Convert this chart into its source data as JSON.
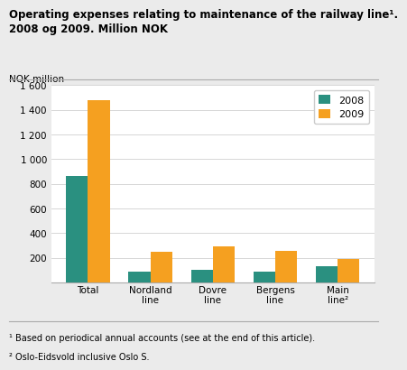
{
  "title": "Operating expenses relating to maintenance of the railway line¹.\n2008 og 2009. Million NOK",
  "ylabel": "NOK million",
  "categories": [
    "Total",
    "Nordland\nline",
    "Dovre\nline",
    "Bergens\nline",
    "Main\nline²"
  ],
  "values_2008": [
    860,
    90,
    105,
    88,
    130
  ],
  "values_2009": [
    1480,
    250,
    290,
    260,
    190
  ],
  "color_2008": "#2a9080",
  "color_2009": "#f5a020",
  "ylim": [
    0,
    1600
  ],
  "yticks": [
    0,
    200,
    400,
    600,
    800,
    1000,
    1200,
    1400,
    1600
  ],
  "ytick_labels": [
    "",
    "200",
    "400",
    "600",
    "800",
    "1 000",
    "1 200",
    "1 400",
    "1 600"
  ],
  "legend_labels": [
    "2008",
    "2009"
  ],
  "footnote1": "¹ Based on periodical annual accounts (see at the end of this article).",
  "footnote2": "² Oslo-Eidsvold inclusive Oslo S.",
  "bg_color": "#ebebeb",
  "plot_bg": "#ffffff",
  "bar_width": 0.35,
  "title_fontsize": 8.5,
  "tick_fontsize": 7.5,
  "footnote_fontsize": 7.0,
  "legend_fontsize": 8.0
}
